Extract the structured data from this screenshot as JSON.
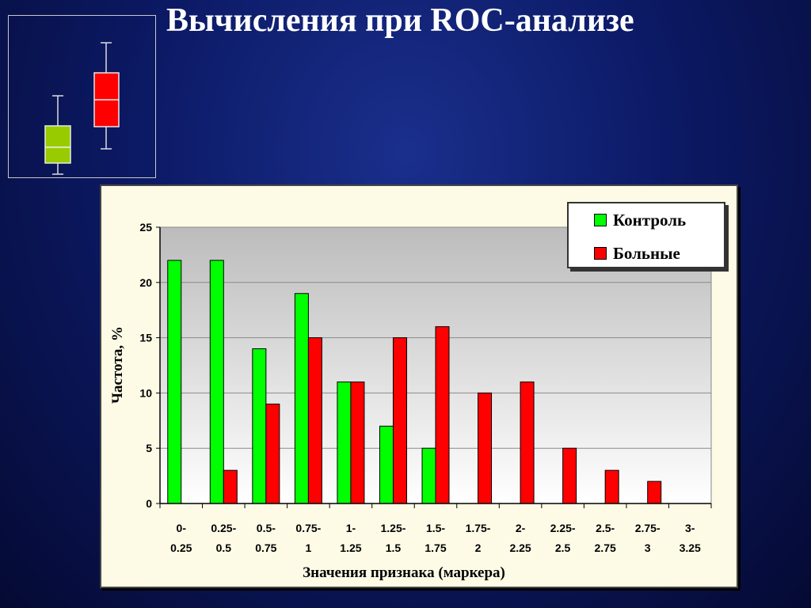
{
  "slide": {
    "title": "Вычисления при ROC-анализе"
  },
  "boxplot": {
    "colors": {
      "control": "#99cc00",
      "patients": "#ff0000"
    }
  },
  "chart_data": {
    "type": "bar",
    "categories": [
      [
        "0-",
        "0.25"
      ],
      [
        "0.25-",
        "0.5"
      ],
      [
        "0.5-",
        "0.75"
      ],
      [
        "0.75-",
        "1"
      ],
      [
        "1-",
        "1.25"
      ],
      [
        "1.25-",
        "1.5"
      ],
      [
        "1.5-",
        "1.75"
      ],
      [
        "1.75-",
        "2"
      ],
      [
        "2-",
        "2.25"
      ],
      [
        "2.25-",
        "2.5"
      ],
      [
        "2.5-",
        "2.75"
      ],
      [
        "2.75-",
        "3"
      ],
      [
        "3-",
        "3.25"
      ]
    ],
    "series": [
      {
        "name": "Контроль",
        "color": "#00ff00",
        "values": [
          22,
          22,
          14,
          19,
          11,
          7,
          5,
          0,
          0,
          0,
          0,
          0,
          0
        ]
      },
      {
        "name": "Больные",
        "color": "#ff0000",
        "values": [
          0,
          3,
          9,
          15,
          11,
          15,
          16,
          10,
          11,
          5,
          3,
          2,
          0
        ]
      }
    ],
    "xlabel": "Значения признака (маркера)",
    "ylabel": "Частота, %",
    "ylim": [
      0,
      25
    ],
    "yticks": [
      0,
      5,
      10,
      15,
      20,
      25
    ],
    "grid": true,
    "legend_position": "top-right"
  }
}
